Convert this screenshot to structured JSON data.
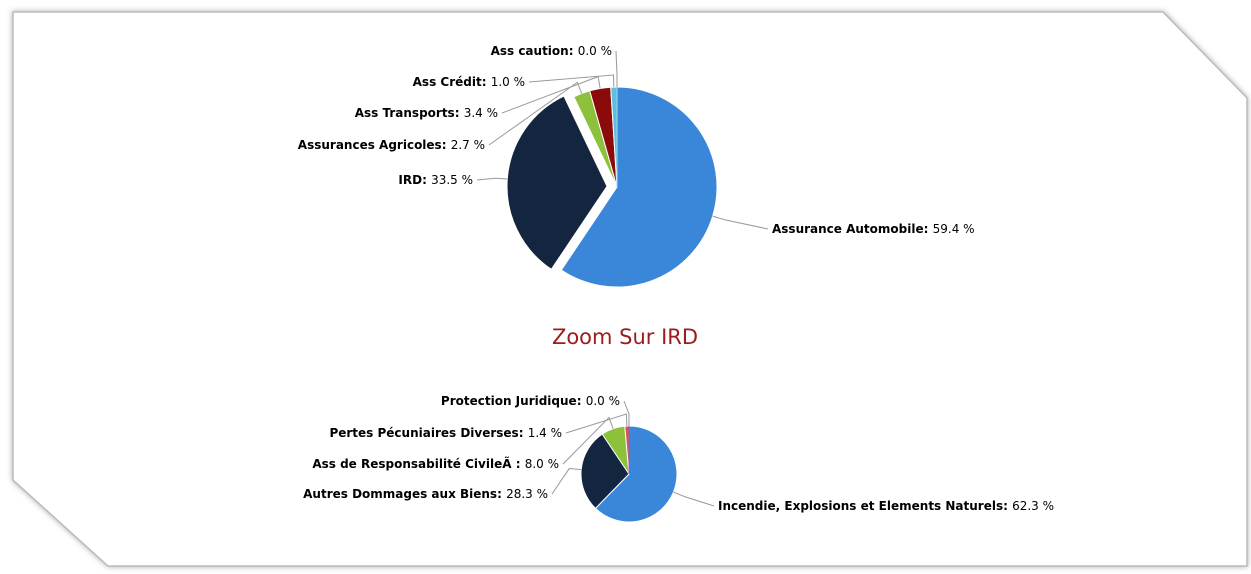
{
  "chart_data": [
    {
      "type": "pie",
      "categories": [
        "Assurance Automobile",
        "IRD",
        "Assurances Agricoles",
        "Ass Transports",
        "Ass Crédit",
        "Ass caution"
      ],
      "values": [
        59.4,
        33.5,
        2.7,
        3.4,
        1.0,
        0.0
      ],
      "value_labels": [
        "59.4 %",
        "33.5 %",
        "2.7 %",
        "3.4 %",
        "1.0 %",
        "0.0 %"
      ],
      "label_separator": ": ",
      "colors": [
        "#3a86d9",
        "#13253f",
        "#8dc13b",
        "#8b0b0b",
        "#5bc0de",
        "#a0d6f0"
      ],
      "exploded": [
        false,
        true,
        false,
        false,
        false,
        false
      ]
    },
    {
      "type": "pie",
      "title": "Zoom Sur IRD",
      "categories": [
        "Incendie, Explosions et Elements Naturels",
        "Autres Dommages aux Biens",
        "Ass de Responsabilité CivileÃ ",
        "Pertes Pécuniaires Diverses",
        "Protection Juridique"
      ],
      "values": [
        62.3,
        28.3,
        8.0,
        1.4,
        0.0
      ],
      "value_labels": [
        "62.3 %",
        "28.3 %",
        "8.0 %",
        "1.4 %",
        "0.0 %"
      ],
      "label_separator": ": ",
      "colors": [
        "#3a86d9",
        "#13253f",
        "#8dc13b",
        "#d9534f",
        "#9b59b6"
      ],
      "exploded": [
        false,
        false,
        false,
        false,
        false
      ]
    }
  ]
}
